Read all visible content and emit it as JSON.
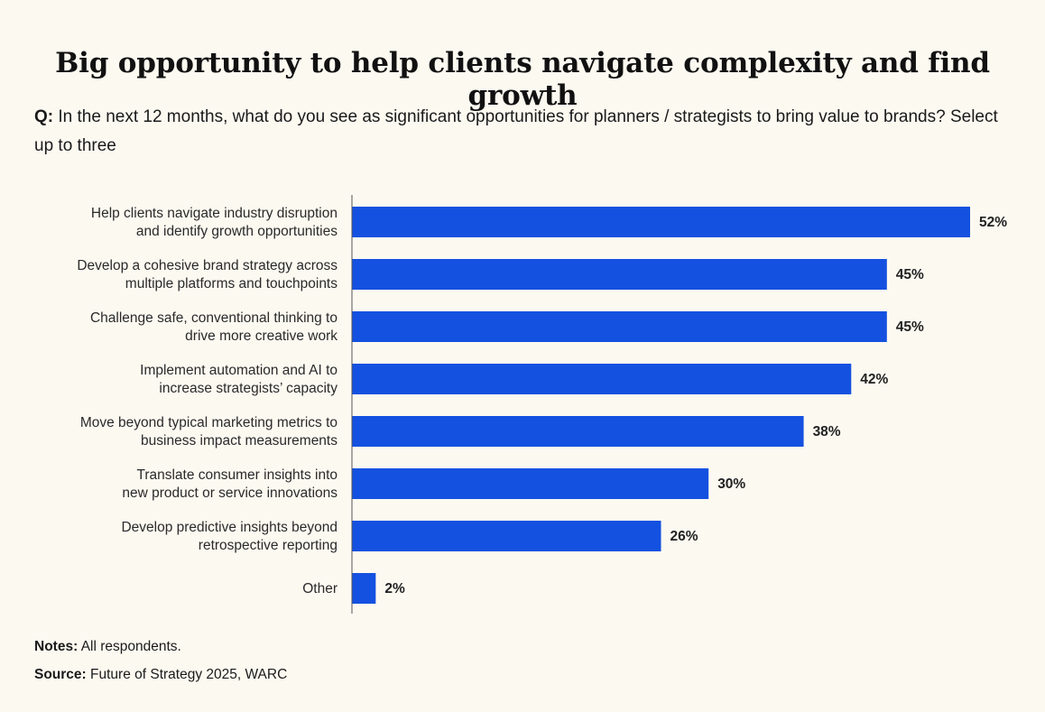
{
  "title": "Big opportunity to help clients navigate complexity and find growth",
  "question": {
    "prefix": "Q:",
    "text": "In the next 12 months, what do you see as significant opportunities for planners / strategists to bring value to brands? Select up to three"
  },
  "chart_data": {
    "type": "bar",
    "orientation": "horizontal",
    "categories": [
      [
        "Help clients navigate industry disruption",
        "and identify growth opportunities"
      ],
      [
        "Develop a cohesive brand strategy across",
        "multiple platforms and touchpoints"
      ],
      [
        "Challenge safe, conventional thinking to",
        "drive more creative work"
      ],
      [
        "Implement automation and AI to",
        "increase strategists’ capacity"
      ],
      [
        "Move beyond typical marketing metrics to",
        "business impact measurements"
      ],
      [
        "Translate consumer insights into",
        "new product or service innovations"
      ],
      [
        "Develop predictive insights beyond",
        "retrospective reporting"
      ],
      [
        "Other"
      ]
    ],
    "values": [
      52,
      45,
      45,
      42,
      38,
      30,
      26,
      2
    ],
    "value_labels": [
      "52%",
      "45%",
      "45%",
      "42%",
      "38%",
      "30%",
      "26%",
      "2%"
    ],
    "unit": "%",
    "xlim": [
      0,
      52
    ],
    "bar_color": "#1451e0",
    "axis_color": "#555555"
  },
  "notes": {
    "label": "Notes:",
    "text": "All respondents."
  },
  "source": {
    "label": "Source:",
    "text": "Future of Strategy 2025, WARC"
  }
}
